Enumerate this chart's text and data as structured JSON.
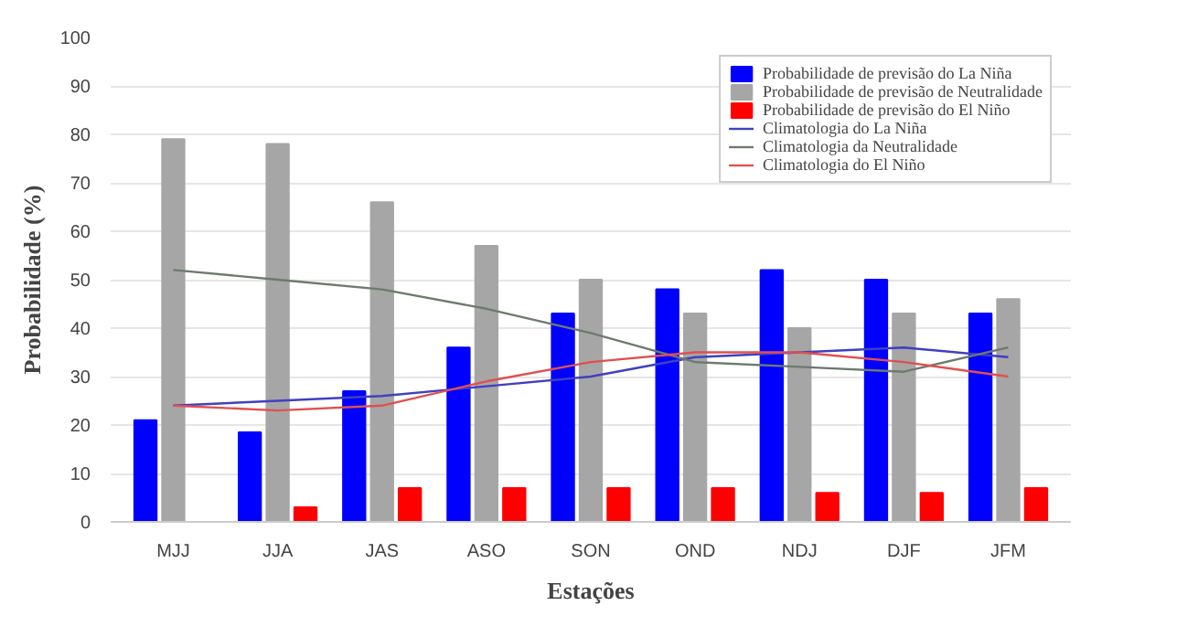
{
  "chart_data": {
    "type": "bar",
    "xlabel": "Estações",
    "ylabel": "Probabilidade (%)",
    "categories": [
      "MJJ",
      "JJA",
      "JAS",
      "ASO",
      "SON",
      "OND",
      "NDJ",
      "DJF",
      "JFM"
    ],
    "ylim": [
      0,
      100
    ],
    "yticks": [
      0,
      10,
      20,
      30,
      40,
      50,
      60,
      70,
      80,
      90,
      100
    ],
    "grid": "y",
    "legend": "top right",
    "series": [
      {
        "name": "Probabilidade de previsão do La Niña",
        "color": "#0000ff",
        "values": [
          21,
          18.5,
          27,
          36,
          43,
          48,
          52,
          50,
          43
        ]
      },
      {
        "name": "Probabilidade de previsão de Neutralidade",
        "color": "#a6a6a6",
        "values": [
          79,
          78,
          66,
          57,
          50,
          43,
          40,
          43,
          46
        ]
      },
      {
        "name": "Probabilidade de previsão do El Niño",
        "color": "#ff0000",
        "values": [
          null,
          3,
          7,
          7,
          7,
          7,
          6,
          6,
          7
        ]
      },
      {
        "name": "Climatologia do La Niña",
        "type": "line",
        "color": "#4040c0",
        "values": [
          24,
          25,
          26,
          28,
          30,
          34,
          35,
          36,
          34
        ]
      },
      {
        "name": "Climatologia da Neutralidade",
        "type": "line",
        "color": "#6e7a6e",
        "values": [
          52,
          50,
          48,
          44,
          39,
          33,
          32,
          31,
          36
        ]
      },
      {
        "name": "Climatologia do El Niño",
        "type": "line",
        "color": "#e05050",
        "values": [
          24,
          23,
          24,
          29,
          33,
          35,
          35,
          33,
          30
        ]
      }
    ]
  }
}
